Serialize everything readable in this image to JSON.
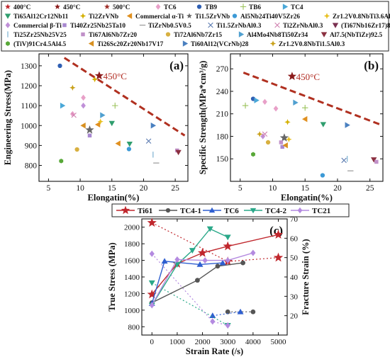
{
  "legend_top": [
    {
      "label": "400°C",
      "marker": "star",
      "color": "#c0272d"
    },
    {
      "label": "450°C",
      "marker": "star",
      "color": "#8b1a1a"
    },
    {
      "label": "500°C",
      "marker": "star",
      "color": "#a0302a"
    },
    {
      "label": "TC6",
      "marker": "diamond",
      "color": "#e8a0c8"
    },
    {
      "label": "TB9",
      "marker": "circle",
      "color": "#2f5fb3"
    },
    {
      "label": "TB6",
      "marker": "plus",
      "color": "#9ac25a"
    },
    {
      "label": "TC4",
      "marker": "tri-right",
      "color": "#4aa8d8"
    },
    {
      "label": "Ti65Al12Cr12Nb11",
      "marker": "tri-down",
      "color": "#2f9e6e"
    },
    {
      "label": "Ti2ZrVNb",
      "marker": "star4",
      "color": "#d4b000"
    },
    {
      "label": "Commercial α-Ti",
      "marker": "tri-left",
      "color": "#e09020"
    },
    {
      "label": "Ti1.5ZrVNb",
      "marker": "star",
      "color": "#666666"
    },
    {
      "label": "Al5Nb24Ti40V5Zr26",
      "marker": "circle",
      "color": "#3c9ad6"
    },
    {
      "label": "Zr1.2V0.8NbTi3.6Al0.9",
      "marker": "star4",
      "color": "#e8c020"
    },
    {
      "label": "Commercial β-Ti",
      "marker": "diamond",
      "color": "#c090d8"
    },
    {
      "label": "Ti40Zr25Nb25Ta10",
      "marker": "square",
      "color": "#a888d0"
    },
    {
      "label": "TiZrNb0.5V0.5",
      "marker": "hline",
      "color": "#999999"
    },
    {
      "label": "Ti1.5ZrNbAl0.3",
      "marker": "x",
      "color": "#5a7ab0"
    },
    {
      "label": "Ti2ZrNbAl0.3",
      "marker": "x",
      "color": "#d080b0"
    },
    {
      "label": "(Ti67Nb16Zr17)87Al13",
      "marker": "tri-down",
      "color": "#7a3050"
    },
    {
      "label": "Ti25Zr25Nb25V25",
      "marker": "vline",
      "color": "#7ab0d0"
    },
    {
      "label": "Ti67Al6Nb7Zr20",
      "marker": "square",
      "color": "#c090c8"
    },
    {
      "label": "Ti72Al6Nb7Zr15",
      "marker": "circle",
      "color": "#d8b040"
    },
    {
      "label": "Al4Mo4Nb8Ti50Zr34",
      "marker": "tri-right",
      "color": "#50a0d0"
    },
    {
      "label": "Al7.5(NbTiZr)92.5",
      "marker": "tri-down",
      "color": "#8b3040"
    },
    {
      "label": "(TiV)91Cr4.5Al4.5",
      "marker": "hexagon",
      "color": "#58a838"
    },
    {
      "label": "Ti26Sc20Zr20Nb17V17",
      "marker": "tri-left",
      "color": "#d89020"
    },
    {
      "label": "Ti60Al12(VCrNb)28",
      "marker": "tri-right",
      "color": "#4a80c0"
    },
    {
      "label": "Zr1.2V0.8NbTi1.5Al0.3",
      "marker": "star4",
      "color": "#c8a018"
    }
  ],
  "legend_c": [
    {
      "label": "Ti61",
      "marker": "star",
      "color": "#c0272d"
    },
    {
      "label": "TC4-1",
      "marker": "circle",
      "color": "#555555"
    },
    {
      "label": "TC6",
      "marker": "tri-up",
      "color": "#2f5fd0"
    },
    {
      "label": "TC4-2",
      "marker": "tri-down",
      "color": "#2aa889"
    },
    {
      "label": "TC21",
      "marker": "diamond",
      "color": "#b48ae0"
    }
  ],
  "chart_data": [
    {
      "type": "scatter",
      "panel_label": "(a)",
      "xlabel": "Elongatin(%)",
      "ylabel": "Engineering Stress(MPa)",
      "xlim": [
        3.5,
        27
      ],
      "ylim": [
        720,
        1360
      ],
      "xticks": [
        5,
        10,
        15,
        20,
        25
      ],
      "yticks": [
        800,
        900,
        1000,
        1100,
        1200,
        1300
      ],
      "trend_line": {
        "x": [
          7.5,
          26.5
        ],
        "y": [
          1340,
          950
        ],
        "color": "#b03020"
      },
      "annotation": {
        "text": "450°C",
        "x": 13.3,
        "y": 1250
      },
      "points": [
        {
          "series": "450°C",
          "x": 13.0,
          "y": 1250
        },
        {
          "series": "TC6",
          "x": 8.8,
          "y": 1058
        },
        {
          "series": "TC6",
          "x": 10.5,
          "y": 1140
        },
        {
          "series": "TB9",
          "x": 6.8,
          "y": 1300
        },
        {
          "series": "TB6",
          "x": 15.5,
          "y": 1100
        },
        {
          "series": "TC4",
          "x": 7.2,
          "y": 1100
        },
        {
          "series": "Ti65Al12Cr12Nb11",
          "x": 15.0,
          "y": 1012
        },
        {
          "series": "Ti65Al12Cr12Nb11",
          "x": 17.8,
          "y": 908
        },
        {
          "series": "Ti2ZrVNb",
          "x": 12.3,
          "y": 1232
        },
        {
          "series": "Commercial α-Ti",
          "x": 12.8,
          "y": 1005
        },
        {
          "series": "Commercial α-Ti",
          "x": 16.0,
          "y": 910
        },
        {
          "series": "Ti1.5ZrVNb",
          "x": 11.5,
          "y": 978
        },
        {
          "series": "Al5Nb24Ti40V5Zr26",
          "x": 17.7,
          "y": 882
        },
        {
          "series": "Zr1.2V0.8NbTi3.6Al0.9",
          "x": 13.2,
          "y": 1020
        },
        {
          "series": "Commercial β-Ti",
          "x": 10.5,
          "y": 1100
        },
        {
          "series": "Ti40Zr25Nb25Ta10",
          "x": 11.5,
          "y": 950
        },
        {
          "series": "TiZrNb0.5V0.5",
          "x": 22.0,
          "y": 812
        },
        {
          "series": "Ti1.5ZrNbAl0.3",
          "x": 20.8,
          "y": 922
        },
        {
          "series": "Ti2ZrNbAl0.3",
          "x": 9.0,
          "y": 1052
        },
        {
          "series": "Ti25Zr25Nb25V25",
          "x": 21.5,
          "y": 854
        },
        {
          "series": "Ti67Al6Nb7Zr20",
          "x": 25.3,
          "y": 875
        },
        {
          "series": "Ti72Al6Nb7Zr15",
          "x": 9.5,
          "y": 880
        },
        {
          "series": "Al4Mo4Nb8Ti50Zr34",
          "x": 13.5,
          "y": 1052
        },
        {
          "series": "Al7.5(NbTiZr)92.5",
          "x": 25.5,
          "y": 866
        },
        {
          "series": "(TiV)91Cr4.5Al4.5",
          "x": 7.0,
          "y": 822
        },
        {
          "series": "Ti26Sc20Zr20Nb17V17",
          "x": 10.5,
          "y": 1000
        },
        {
          "series": "Ti60Al12(VCrNb)28",
          "x": 21.5,
          "y": 1000
        },
        {
          "series": "Zr1.2V0.8NbTi1.5Al0.3",
          "x": 8.8,
          "y": 1190
        }
      ]
    },
    {
      "type": "scatter",
      "panel_label": "(b)",
      "xlabel": "Elongatin(%)",
      "ylabel": "Specific Strength(MPa*cm³/g)",
      "xlim": [
        3.5,
        27
      ],
      "ylim": [
        120,
        290
      ],
      "xticks": [
        5,
        10,
        15,
        20,
        25
      ],
      "yticks": [
        150,
        180,
        210,
        240,
        270
      ],
      "trend_line": {
        "x": [
          5.5,
          26.5
        ],
        "y": [
          265,
          196
        ],
        "color": "#b03020"
      },
      "annotation": {
        "text": "450°C",
        "x": 13.3,
        "y": 260
      },
      "points": [
        {
          "series": "450°C",
          "x": 13.0,
          "y": 260
        },
        {
          "series": "TC6",
          "x": 8.8,
          "y": 226
        },
        {
          "series": "TC6",
          "x": 10.5,
          "y": 217
        },
        {
          "series": "TB9",
          "x": 7.0,
          "y": 230
        },
        {
          "series": "TB6",
          "x": 15.0,
          "y": 218
        },
        {
          "series": "TC4",
          "x": 7.5,
          "y": 228
        },
        {
          "series": "Ti65Al12Cr12Nb11",
          "x": 17.8,
          "y": 196
        },
        {
          "series": "Ti2ZrVNb",
          "x": 12.3,
          "y": 199
        },
        {
          "series": "Commercial α-Ti",
          "x": 15.0,
          "y": 203
        },
        {
          "series": "Ti1.5ZrVNb",
          "x": 11.8,
          "y": 178
        },
        {
          "series": "Al5Nb24Ti40V5Zr26",
          "x": 17.7,
          "y": 128
        },
        {
          "series": "Zr1.2V0.8NbTi3.6Al0.9",
          "x": 12.5,
          "y": 176
        },
        {
          "series": "Commercial β-Ti",
          "x": 8.5,
          "y": 180
        },
        {
          "series": "Ti40Zr25Nb25Ta10",
          "x": 11.5,
          "y": 166
        },
        {
          "series": "TiZrNb0.5V0.5",
          "x": 22.0,
          "y": 134
        },
        {
          "series": "Ti1.5ZrNbAl0.3",
          "x": 21.0,
          "y": 148
        },
        {
          "series": "Ti2ZrNbAl0.3",
          "x": 8.8,
          "y": 183
        },
        {
          "series": "Ti25Zr25Nb25V25",
          "x": 21.5,
          "y": 150
        },
        {
          "series": "Ti67Al6Nb7Zr20",
          "x": 11.3,
          "y": 172
        },
        {
          "series": "Ti72Al6Nb7Zr15",
          "x": 9.3,
          "y": 172
        },
        {
          "series": "Al4Mo4Nb8Ti50Zr34",
          "x": 13.5,
          "y": 225
        },
        {
          "series": "Al7.5(NbTiZr)92.5",
          "x": 25.6,
          "y": 149
        },
        {
          "series": "(TiV)91Cr4.5Al4.5",
          "x": 7.0,
          "y": 156
        },
        {
          "series": "Ti26Sc20Zr20Nb17V17",
          "x": 12.0,
          "y": 168
        },
        {
          "series": "Ti60Al12(VCrNb)28",
          "x": 21.5,
          "y": 195
        },
        {
          "series": "Zr1.2V0.8NbTi1.5Al0.3",
          "x": 8.0,
          "y": 183
        },
        {
          "series": "TB6",
          "x": 5.8,
          "y": 221
        },
        {
          "series": "Ti67Al6Nb7Zr20",
          "x": 26.0,
          "y": 146
        }
      ]
    },
    {
      "type": "line",
      "panel_label": "(c)",
      "xlabel": "Strain Rate (/s)",
      "ylabel": "True Stress (MPa)",
      "ylabel_right": "Fracture Strain (%)",
      "xlim": [
        -400,
        5350
      ],
      "ylim": [
        700,
        2100
      ],
      "ylim_right": [
        10,
        70
      ],
      "xticks": [
        0,
        1000,
        2000,
        3000,
        4000,
        5000
      ],
      "yticks": [
        800,
        1000,
        1200,
        1400,
        1600,
        1800,
        2000
      ],
      "yticks_right": [
        20,
        30,
        40,
        50,
        60,
        70
      ],
      "series": [
        {
          "name": "Ti61",
          "x": [
            0,
            1000,
            2000,
            3000,
            5000
          ],
          "y": [
            1190,
            1560,
            1690,
            1770,
            1910
          ]
        },
        {
          "name": "TC4-1",
          "x": [
            0,
            1800,
            2600,
            3600
          ],
          "y": [
            1090,
            1360,
            1530,
            1570
          ]
        },
        {
          "name": "TC6",
          "x": [
            0,
            500,
            1900,
            2800
          ],
          "y": [
            1080,
            1590,
            1550,
            1570
          ]
        },
        {
          "name": "TC4-2",
          "x": [
            0,
            1000,
            1600,
            2300,
            3000
          ],
          "y": [
            1060,
            1550,
            1720,
            1980,
            1880
          ]
        },
        {
          "name": "TC21",
          "x": [
            0,
            1000,
            2100,
            3000,
            4000
          ],
          "y": [
            1060,
            1610,
            1600,
            1600,
            1690
          ]
        }
      ],
      "fracture_strain_series": [
        {
          "name": "Ti61",
          "x": [
            0,
            3000,
            5000
          ],
          "y": [
            68,
            48,
            50
          ]
        },
        {
          "name": "TC4-1",
          "x": [
            3000,
            4000
          ],
          "y": [
            22,
            22
          ]
        },
        {
          "name": "TC6",
          "x": [
            2400,
            3500
          ],
          "y": [
            20,
            22
          ]
        },
        {
          "name": "TC4-2",
          "x": [
            0,
            3000
          ],
          "y": [
            37,
            15
          ]
        },
        {
          "name": "TC21",
          "x": [
            0,
            2400,
            3000
          ],
          "y": [
            52,
            17,
            15
          ]
        }
      ]
    }
  ]
}
